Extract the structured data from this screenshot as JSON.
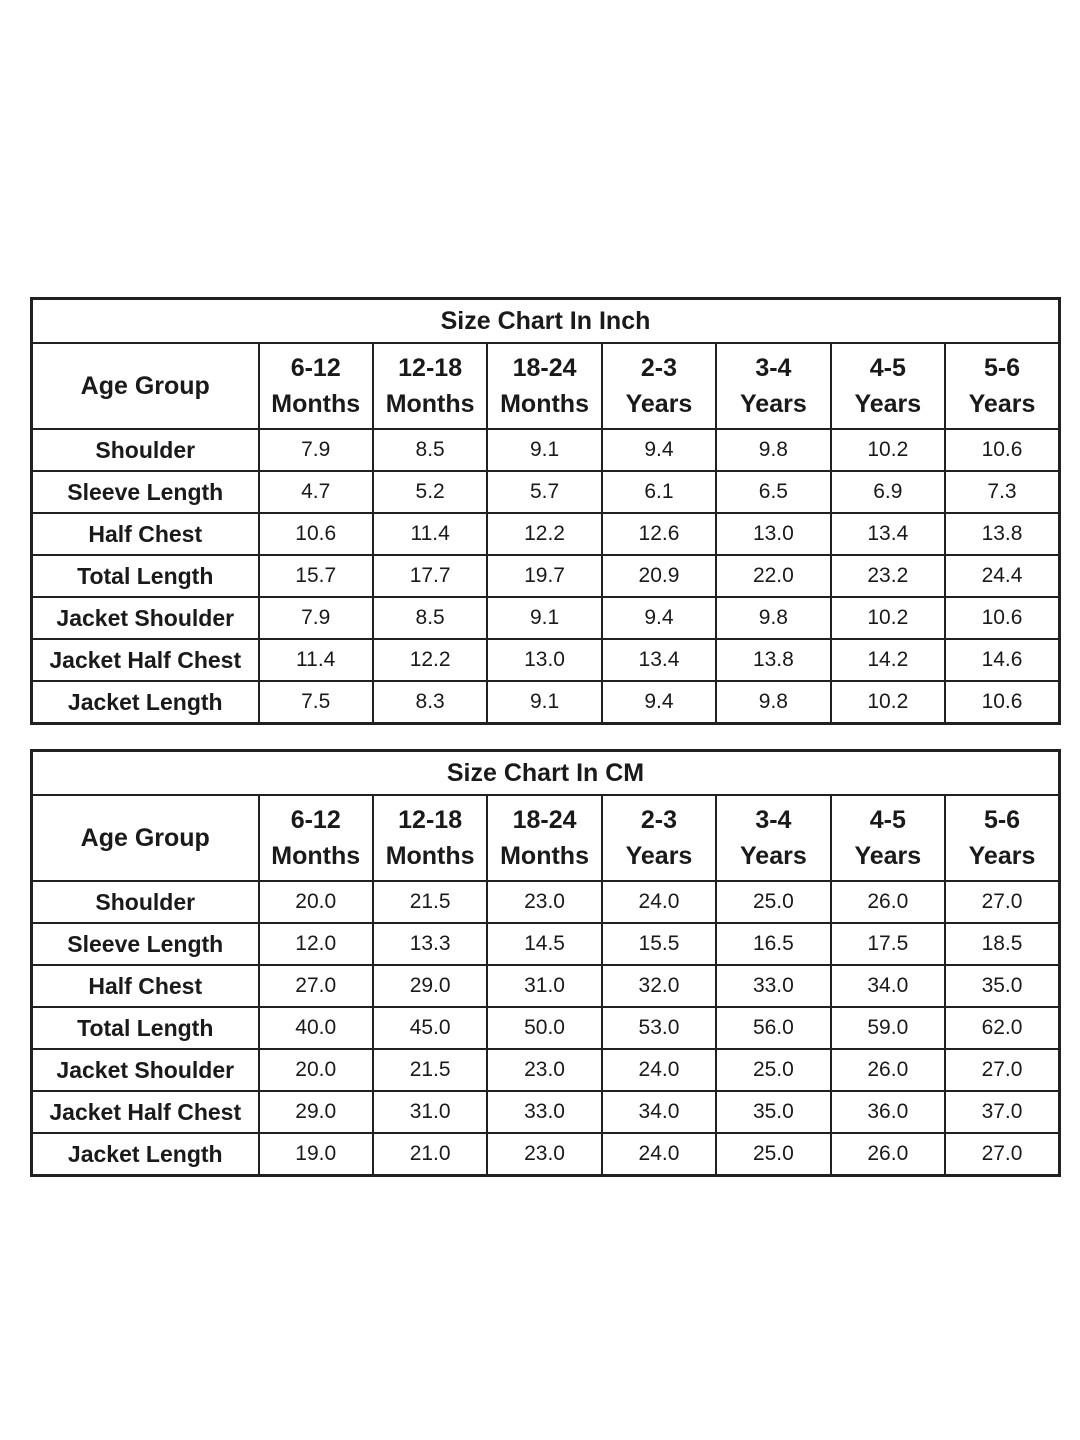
{
  "colors": {
    "background": "#ffffff",
    "border": "#212121",
    "text": "#1a1a1a"
  },
  "chart_data": [
    {
      "type": "table",
      "title": "Size Chart In Inch",
      "header": {
        "row_label": "Age Group",
        "columns": [
          {
            "range": "6-12",
            "unit": "Months"
          },
          {
            "range": "12-18",
            "unit": "Months"
          },
          {
            "range": "18-24",
            "unit": "Months"
          },
          {
            "range": "2-3",
            "unit": "Years"
          },
          {
            "range": "3-4",
            "unit": "Years"
          },
          {
            "range": "4-5",
            "unit": "Years"
          },
          {
            "range": "5-6",
            "unit": "Years"
          }
        ]
      },
      "rows": [
        {
          "label": "Shoulder",
          "values": [
            "7.9",
            "8.5",
            "9.1",
            "9.4",
            "9.8",
            "10.2",
            "10.6"
          ]
        },
        {
          "label": "Sleeve Length",
          "values": [
            "4.7",
            "5.2",
            "5.7",
            "6.1",
            "6.5",
            "6.9",
            "7.3"
          ]
        },
        {
          "label": "Half Chest",
          "values": [
            "10.6",
            "11.4",
            "12.2",
            "12.6",
            "13.0",
            "13.4",
            "13.8"
          ]
        },
        {
          "label": "Total Length",
          "values": [
            "15.7",
            "17.7",
            "19.7",
            "20.9",
            "22.0",
            "23.2",
            "24.4"
          ]
        },
        {
          "label": "Jacket Shoulder",
          "values": [
            "7.9",
            "8.5",
            "9.1",
            "9.4",
            "9.8",
            "10.2",
            "10.6"
          ]
        },
        {
          "label": "Jacket Half Chest",
          "values": [
            "11.4",
            "12.2",
            "13.0",
            "13.4",
            "13.8",
            "14.2",
            "14.6"
          ]
        },
        {
          "label": "Jacket Length",
          "values": [
            "7.5",
            "8.3",
            "9.1",
            "9.4",
            "9.8",
            "10.2",
            "10.6"
          ]
        }
      ]
    },
    {
      "type": "table",
      "title": "Size Chart In CM",
      "header": {
        "row_label": "Age Group",
        "columns": [
          {
            "range": "6-12",
            "unit": "Months"
          },
          {
            "range": "12-18",
            "unit": "Months"
          },
          {
            "range": "18-24",
            "unit": "Months"
          },
          {
            "range": "2-3",
            "unit": "Years"
          },
          {
            "range": "3-4",
            "unit": "Years"
          },
          {
            "range": "4-5",
            "unit": "Years"
          },
          {
            "range": "5-6",
            "unit": "Years"
          }
        ]
      },
      "rows": [
        {
          "label": "Shoulder",
          "values": [
            "20.0",
            "21.5",
            "23.0",
            "24.0",
            "25.0",
            "26.0",
            "27.0"
          ]
        },
        {
          "label": "Sleeve Length",
          "values": [
            "12.0",
            "13.3",
            "14.5",
            "15.5",
            "16.5",
            "17.5",
            "18.5"
          ]
        },
        {
          "label": "Half Chest",
          "values": [
            "27.0",
            "29.0",
            "31.0",
            "32.0",
            "33.0",
            "34.0",
            "35.0"
          ]
        },
        {
          "label": "Total Length",
          "values": [
            "40.0",
            "45.0",
            "50.0",
            "53.0",
            "56.0",
            "59.0",
            "62.0"
          ]
        },
        {
          "label": "Jacket Shoulder",
          "values": [
            "20.0",
            "21.5",
            "23.0",
            "24.0",
            "25.0",
            "26.0",
            "27.0"
          ]
        },
        {
          "label": "Jacket Half Chest",
          "values": [
            "29.0",
            "31.0",
            "33.0",
            "34.0",
            "35.0",
            "36.0",
            "37.0"
          ]
        },
        {
          "label": "Jacket Length",
          "values": [
            "19.0",
            "21.0",
            "23.0",
            "24.0",
            "25.0",
            "26.0",
            "27.0"
          ]
        }
      ]
    }
  ]
}
